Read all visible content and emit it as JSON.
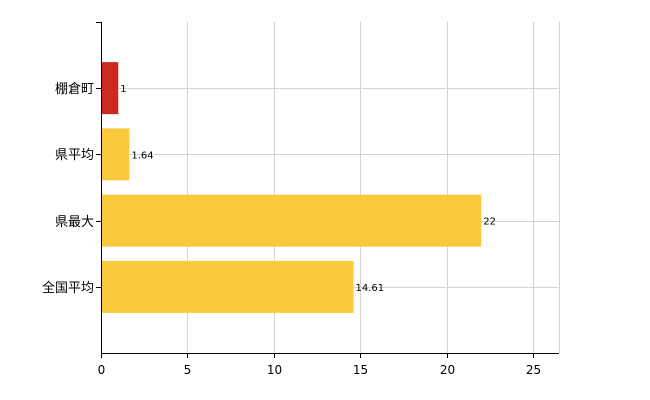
{
  "chart_data": {
    "type": "bar",
    "orientation": "horizontal",
    "categories": [
      "棚倉町",
      "県平均",
      "県最大",
      "全国平均"
    ],
    "values": [
      1,
      1.64,
      22,
      14.61
    ],
    "data_labels": [
      "1",
      "1.64",
      "22",
      "14.61"
    ],
    "bar_colors": [
      "#cc2a1f",
      "#fbc93d",
      "#fbc93d",
      "#fbc93d"
    ],
    "xlim": [
      0,
      26.5
    ],
    "x_ticks": [
      0,
      5,
      10,
      15,
      20,
      25
    ],
    "x_tick_labels": [
      "0",
      "5",
      "10",
      "15",
      "20",
      "25"
    ],
    "grid": true,
    "grid_color": "#d3d3d3",
    "axis_color": "#000000",
    "title": "",
    "xlabel": "",
    "ylabel": ""
  }
}
